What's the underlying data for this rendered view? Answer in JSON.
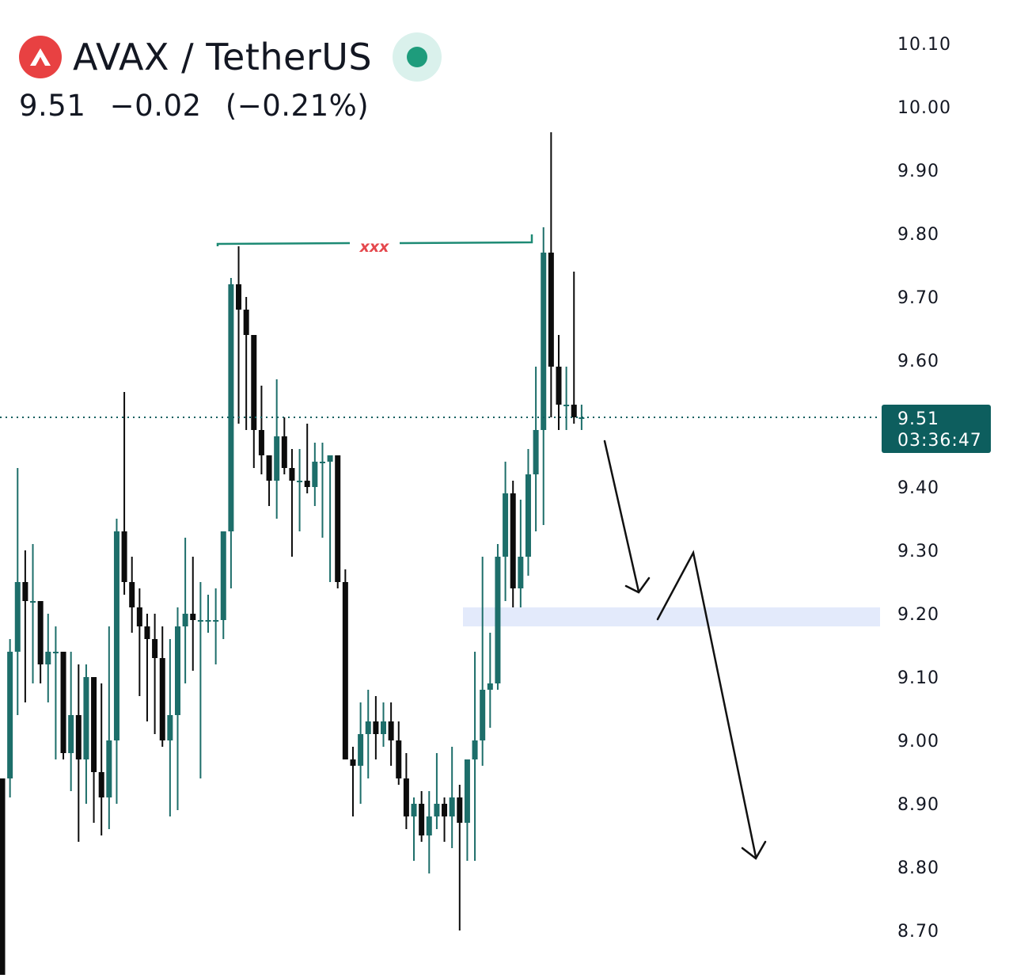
{
  "header": {
    "pair": "AVAX / TetherUS",
    "price": "9.51",
    "change": "−0.02",
    "change_pct": "(−0.21%)",
    "logo_icon": "avalanche-logo-icon",
    "status_icon": "market-open-dot-icon"
  },
  "colors": {
    "up": "#1d6e6a",
    "down": "#0c0c0c",
    "logo": "#e84142",
    "status": "#1e9c7c",
    "zone": "#e3eafb",
    "annotation": "#e5484d",
    "price_tag": "#0d5e5e"
  },
  "chart_data": {
    "type": "candlestick",
    "title": "AVAX / TetherUS",
    "y_ticks": [
      "10.10",
      "10.00",
      "9.90",
      "9.80",
      "9.70",
      "9.60",
      "9.40",
      "9.30",
      "9.20",
      "9.10",
      "9.00",
      "8.90",
      "8.80",
      "8.70"
    ],
    "ylim": [
      8.63,
      10.21
    ],
    "current_price": {
      "label": "9.51",
      "countdown": "03:36:47"
    },
    "candles": [
      [
        8.94,
        8.94,
        8.63,
        8.63
      ],
      [
        8.94,
        9.16,
        8.91,
        9.14
      ],
      [
        9.14,
        9.43,
        9.04,
        9.25
      ],
      [
        9.25,
        9.3,
        9.06,
        9.22
      ],
      [
        9.22,
        9.31,
        9.09,
        9.22
      ],
      [
        9.22,
        9.22,
        9.09,
        9.12
      ],
      [
        9.12,
        9.2,
        9.06,
        9.14
      ],
      [
        9.14,
        9.18,
        8.97,
        9.14
      ],
      [
        9.14,
        9.14,
        8.97,
        8.98
      ],
      [
        8.98,
        9.14,
        8.92,
        9.04
      ],
      [
        9.04,
        9.12,
        8.84,
        8.97
      ],
      [
        8.97,
        9.12,
        8.9,
        9.1
      ],
      [
        9.1,
        9.1,
        8.87,
        8.95
      ],
      [
        8.95,
        9.09,
        8.85,
        8.91
      ],
      [
        8.91,
        9.18,
        8.86,
        9.0
      ],
      [
        9.0,
        9.35,
        8.9,
        9.33
      ],
      [
        9.33,
        9.55,
        9.23,
        9.25
      ],
      [
        9.25,
        9.29,
        9.17,
        9.21
      ],
      [
        9.21,
        9.24,
        9.07,
        9.18
      ],
      [
        9.18,
        9.2,
        9.03,
        9.16
      ],
      [
        9.16,
        9.2,
        9.01,
        9.13
      ],
      [
        9.13,
        9.18,
        8.99,
        9.0
      ],
      [
        9.0,
        9.16,
        8.88,
        9.04
      ],
      [
        9.04,
        9.21,
        8.89,
        9.18
      ],
      [
        9.18,
        9.32,
        9.09,
        9.2
      ],
      [
        9.2,
        9.29,
        9.11,
        9.19
      ],
      [
        9.19,
        9.25,
        8.94,
        9.19
      ],
      [
        9.19,
        9.23,
        9.17,
        9.19
      ],
      [
        9.19,
        9.24,
        9.12,
        9.19
      ],
      [
        9.19,
        9.33,
        9.16,
        9.33
      ],
      [
        9.33,
        9.73,
        9.24,
        9.72
      ],
      [
        9.72,
        9.78,
        9.5,
        9.68
      ],
      [
        9.68,
        9.7,
        9.49,
        9.64
      ],
      [
        9.64,
        9.64,
        9.43,
        9.49
      ],
      [
        9.49,
        9.56,
        9.42,
        9.45
      ],
      [
        9.45,
        9.45,
        9.37,
        9.41
      ],
      [
        9.41,
        9.57,
        9.35,
        9.48
      ],
      [
        9.48,
        9.51,
        9.42,
        9.43
      ],
      [
        9.43,
        9.46,
        9.29,
        9.41
      ],
      [
        9.41,
        9.46,
        9.33,
        9.41
      ],
      [
        9.41,
        9.5,
        9.39,
        9.4
      ],
      [
        9.4,
        9.47,
        9.37,
        9.44
      ],
      [
        9.44,
        9.47,
        9.32,
        9.44
      ],
      [
        9.44,
        9.45,
        9.25,
        9.45
      ],
      [
        9.45,
        9.45,
        9.24,
        9.25
      ],
      [
        9.25,
        9.27,
        8.97,
        8.97
      ],
      [
        8.97,
        8.99,
        8.88,
        8.96
      ],
      [
        8.96,
        9.06,
        8.9,
        9.01
      ],
      [
        9.01,
        9.08,
        8.94,
        9.03
      ],
      [
        9.03,
        9.07,
        8.97,
        9.01
      ],
      [
        9.01,
        9.06,
        8.99,
        9.03
      ],
      [
        9.03,
        9.06,
        8.96,
        9.0
      ],
      [
        9.0,
        9.03,
        8.93,
        8.94
      ],
      [
        8.94,
        8.98,
        8.86,
        8.88
      ],
      [
        8.88,
        8.91,
        8.81,
        8.9
      ],
      [
        8.9,
        8.92,
        8.84,
        8.85
      ],
      [
        8.85,
        8.92,
        8.79,
        8.88
      ],
      [
        8.88,
        8.98,
        8.86,
        8.9
      ],
      [
        8.9,
        8.91,
        8.84,
        8.88
      ],
      [
        8.88,
        8.99,
        8.83,
        8.91
      ],
      [
        8.91,
        8.93,
        8.7,
        8.87
      ],
      [
        8.87,
        8.97,
        8.81,
        8.97
      ],
      [
        8.97,
        9.14,
        8.81,
        9.0
      ],
      [
        9.0,
        9.29,
        8.96,
        9.08
      ],
      [
        9.08,
        9.17,
        9.02,
        9.09
      ],
      [
        9.09,
        9.31,
        9.08,
        9.29
      ],
      [
        9.29,
        9.44,
        9.22,
        9.39
      ],
      [
        9.39,
        9.41,
        9.21,
        9.24
      ],
      [
        9.24,
        9.38,
        9.21,
        9.29
      ],
      [
        9.29,
        9.46,
        9.26,
        9.42
      ],
      [
        9.42,
        9.59,
        9.33,
        9.49
      ],
      [
        9.49,
        9.81,
        9.34,
        9.77
      ],
      [
        9.77,
        9.96,
        9.51,
        9.59
      ],
      [
        9.59,
        9.64,
        9.49,
        9.53
      ],
      [
        9.53,
        9.59,
        9.49,
        9.53
      ],
      [
        9.53,
        9.74,
        9.5,
        9.51
      ],
      [
        9.51,
        9.53,
        9.49,
        9.51
      ]
    ],
    "resistance_label": "xxx",
    "demand_zone": [
      9.18,
      9.21
    ]
  }
}
